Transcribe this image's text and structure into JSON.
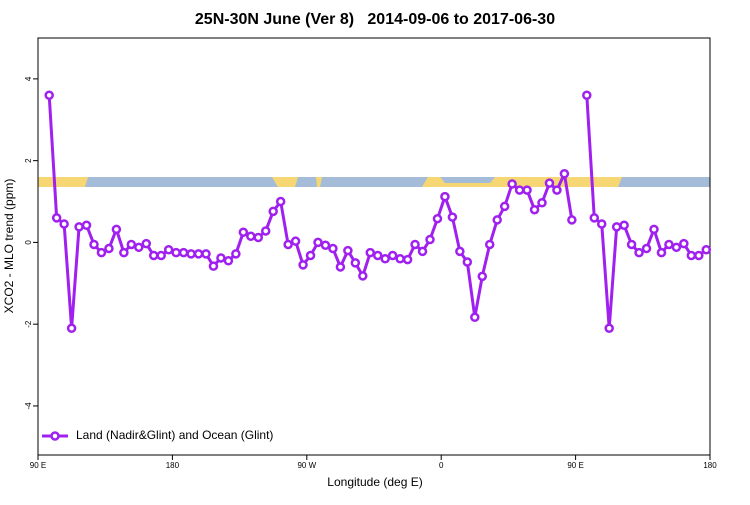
{
  "chart_data": {
    "type": "line",
    "title": "25N-30N June (Ver 8)   2014-09-06 to 2017-06-30",
    "xlabel": "Longitude (deg E)",
    "ylabel": "XCO2 - MLO trend (ppm)",
    "xlim": [
      90,
      540
    ],
    "ylim": [
      -5.2,
      5.0
    ],
    "xticks": [
      {
        "value": 90,
        "label": "90 E"
      },
      180,
      {
        "value": 270,
        "label": "90 W"
      },
      {
        "value": 360,
        "label": "0"
      },
      {
        "value": 450,
        "label": "90 E"
      },
      {
        "value": 540,
        "label": "180"
      }
    ],
    "yticks": [
      -4,
      -2,
      0,
      2,
      4
    ],
    "grid": false,
    "legend": "bottom-left",
    "x": [
      97.5,
      102.5,
      107.5,
      112.5,
      117.5,
      122.5,
      127.5,
      132.5,
      137.5,
      142.5,
      147.5,
      152.5,
      157.5,
      162.5,
      167.5,
      172.5,
      177.5,
      182.5,
      187.5,
      192.5,
      197.5,
      202.5,
      207.5,
      212.5,
      217.5,
      222.5,
      227.5,
      232.5,
      237.5,
      242.5,
      247.5,
      252.5,
      257.5,
      262.5,
      267.5,
      272.5,
      277.5,
      282.5,
      287.5,
      292.5,
      297.5,
      302.5,
      307.5,
      312.5,
      317.5,
      322.5,
      327.5,
      332.5,
      337.5,
      342.5,
      347.5,
      352.5,
      357.5,
      362.5,
      367.5,
      372.5,
      377.5,
      382.5,
      387.5,
      392.5,
      397.5,
      402.5,
      407.5,
      412.5,
      417.5,
      422.5,
      427.5,
      432.5,
      437.5,
      442.5,
      447.5,
      452.5,
      457.5,
      462.5,
      467.5,
      472.5,
      477.5,
      482.5,
      487.5,
      492.5,
      497.5,
      502.5,
      507.5,
      512.5,
      517.5,
      522.5,
      527.5,
      532.5,
      537.5
    ],
    "series": [
      {
        "name": "Land (Nadir&Glint) and Ocean (Glint)",
        "color": "#a020f0",
        "values": [
          3.6,
          0.6,
          0.45,
          -2.1,
          0.38,
          0.42,
          -0.05,
          -0.25,
          -0.15,
          0.32,
          -0.25,
          -0.05,
          -0.12,
          -0.03,
          -0.32,
          -0.32,
          -0.18,
          -0.25,
          -0.25,
          -0.28,
          -0.28,
          -0.28,
          -0.58,
          -0.38,
          -0.45,
          -0.28,
          0.25,
          0.15,
          0.12,
          0.28,
          0.76,
          1.0,
          -0.05,
          0.03,
          -0.55,
          -0.32,
          0.0,
          -0.07,
          -0.15,
          -0.6,
          -0.2,
          -0.5,
          -0.82,
          -0.25,
          -0.32,
          -0.4,
          -0.32,
          -0.4,
          -0.42,
          -0.05,
          -0.22,
          0.07,
          0.58,
          1.12,
          0.62,
          -0.22,
          -0.48,
          -1.83,
          -0.83,
          -0.05,
          0.55,
          0.88,
          1.43,
          1.28,
          1.28,
          0.8,
          0.97,
          1.45,
          1.28,
          1.68,
          0.55,
          null,
          3.6,
          0.6,
          0.45,
          -2.1,
          0.38,
          0.42,
          -0.05,
          -0.25,
          -0.15,
          0.32,
          -0.25,
          -0.05,
          -0.12,
          -0.03,
          -0.32,
          -0.32,
          -0.18
        ]
      }
    ]
  }
}
